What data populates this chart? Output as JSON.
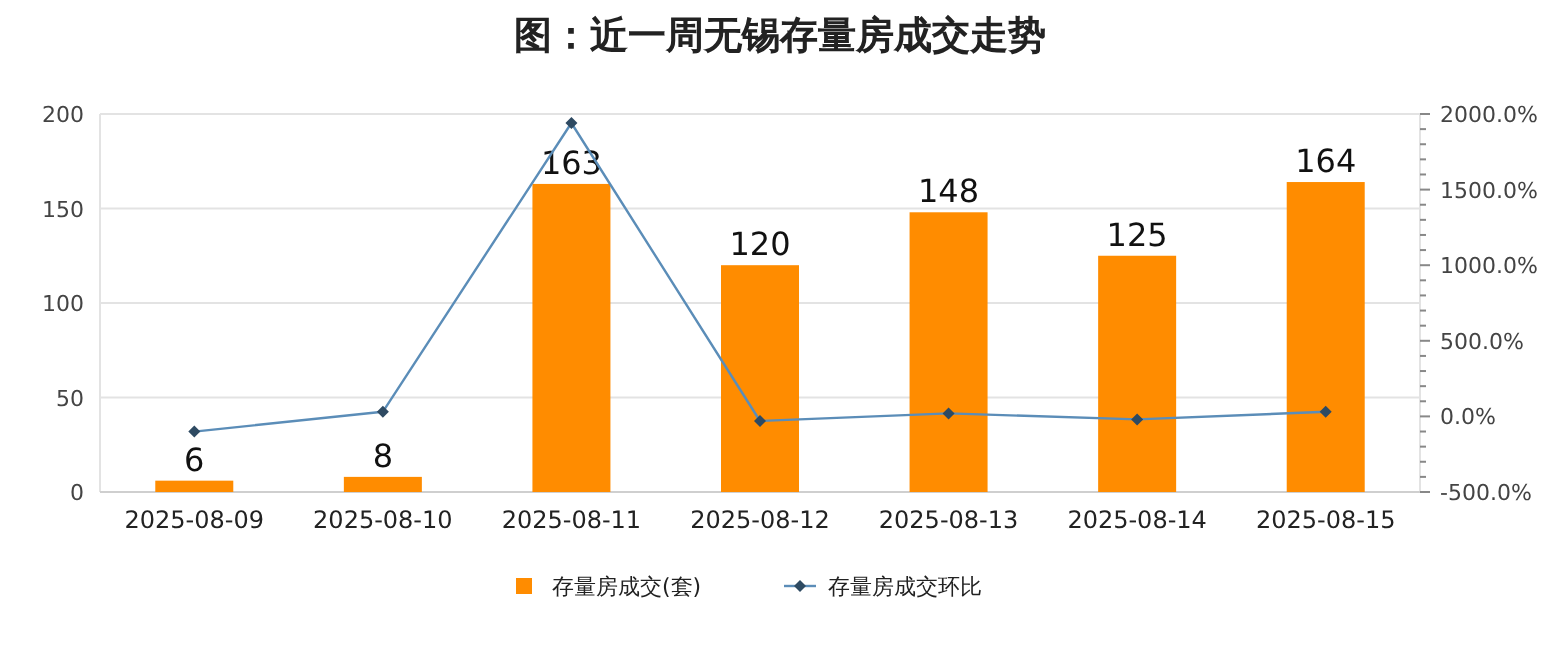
{
  "chart_data": {
    "type": "bar",
    "title": "图：近一周无锡存量房成交走势",
    "categories": [
      "2025-08-09",
      "2025-08-10",
      "2025-08-11",
      "2025-08-12",
      "2025-08-13",
      "2025-08-14",
      "2025-08-15"
    ],
    "series": [
      {
        "name": "存量房成交(套)",
        "color": "#ff8c00",
        "values": [
          6,
          8,
          163,
          120,
          148,
          125,
          164
        ],
        "value_labels": [
          "6",
          "8",
          "163",
          "120",
          "148",
          "125",
          "164"
        ]
      },
      {
        "name": "存量房成交环比",
        "type": "line",
        "axis": "y2",
        "color": "#5b8db8",
        "marker": "diamond",
        "values": [
          -100,
          30,
          1940,
          -30,
          20,
          -20,
          30
        ]
      }
    ],
    "ylim": [
      0,
      200
    ],
    "yticks": [
      0,
      50,
      100,
      150,
      200
    ],
    "y2lim": [
      -500,
      2000
    ],
    "y2ticks": [
      {
        "value": -500,
        "label": "-500.0%"
      },
      {
        "value": 0,
        "label": "0.0%"
      },
      {
        "value": 500,
        "label": "500.0%"
      },
      {
        "value": 1000,
        "label": "1000.0%"
      },
      {
        "value": 1500,
        "label": "1500.0%"
      },
      {
        "value": 2000,
        "label": "2000.0%"
      }
    ],
    "grid": "y",
    "legend": "bottom"
  }
}
